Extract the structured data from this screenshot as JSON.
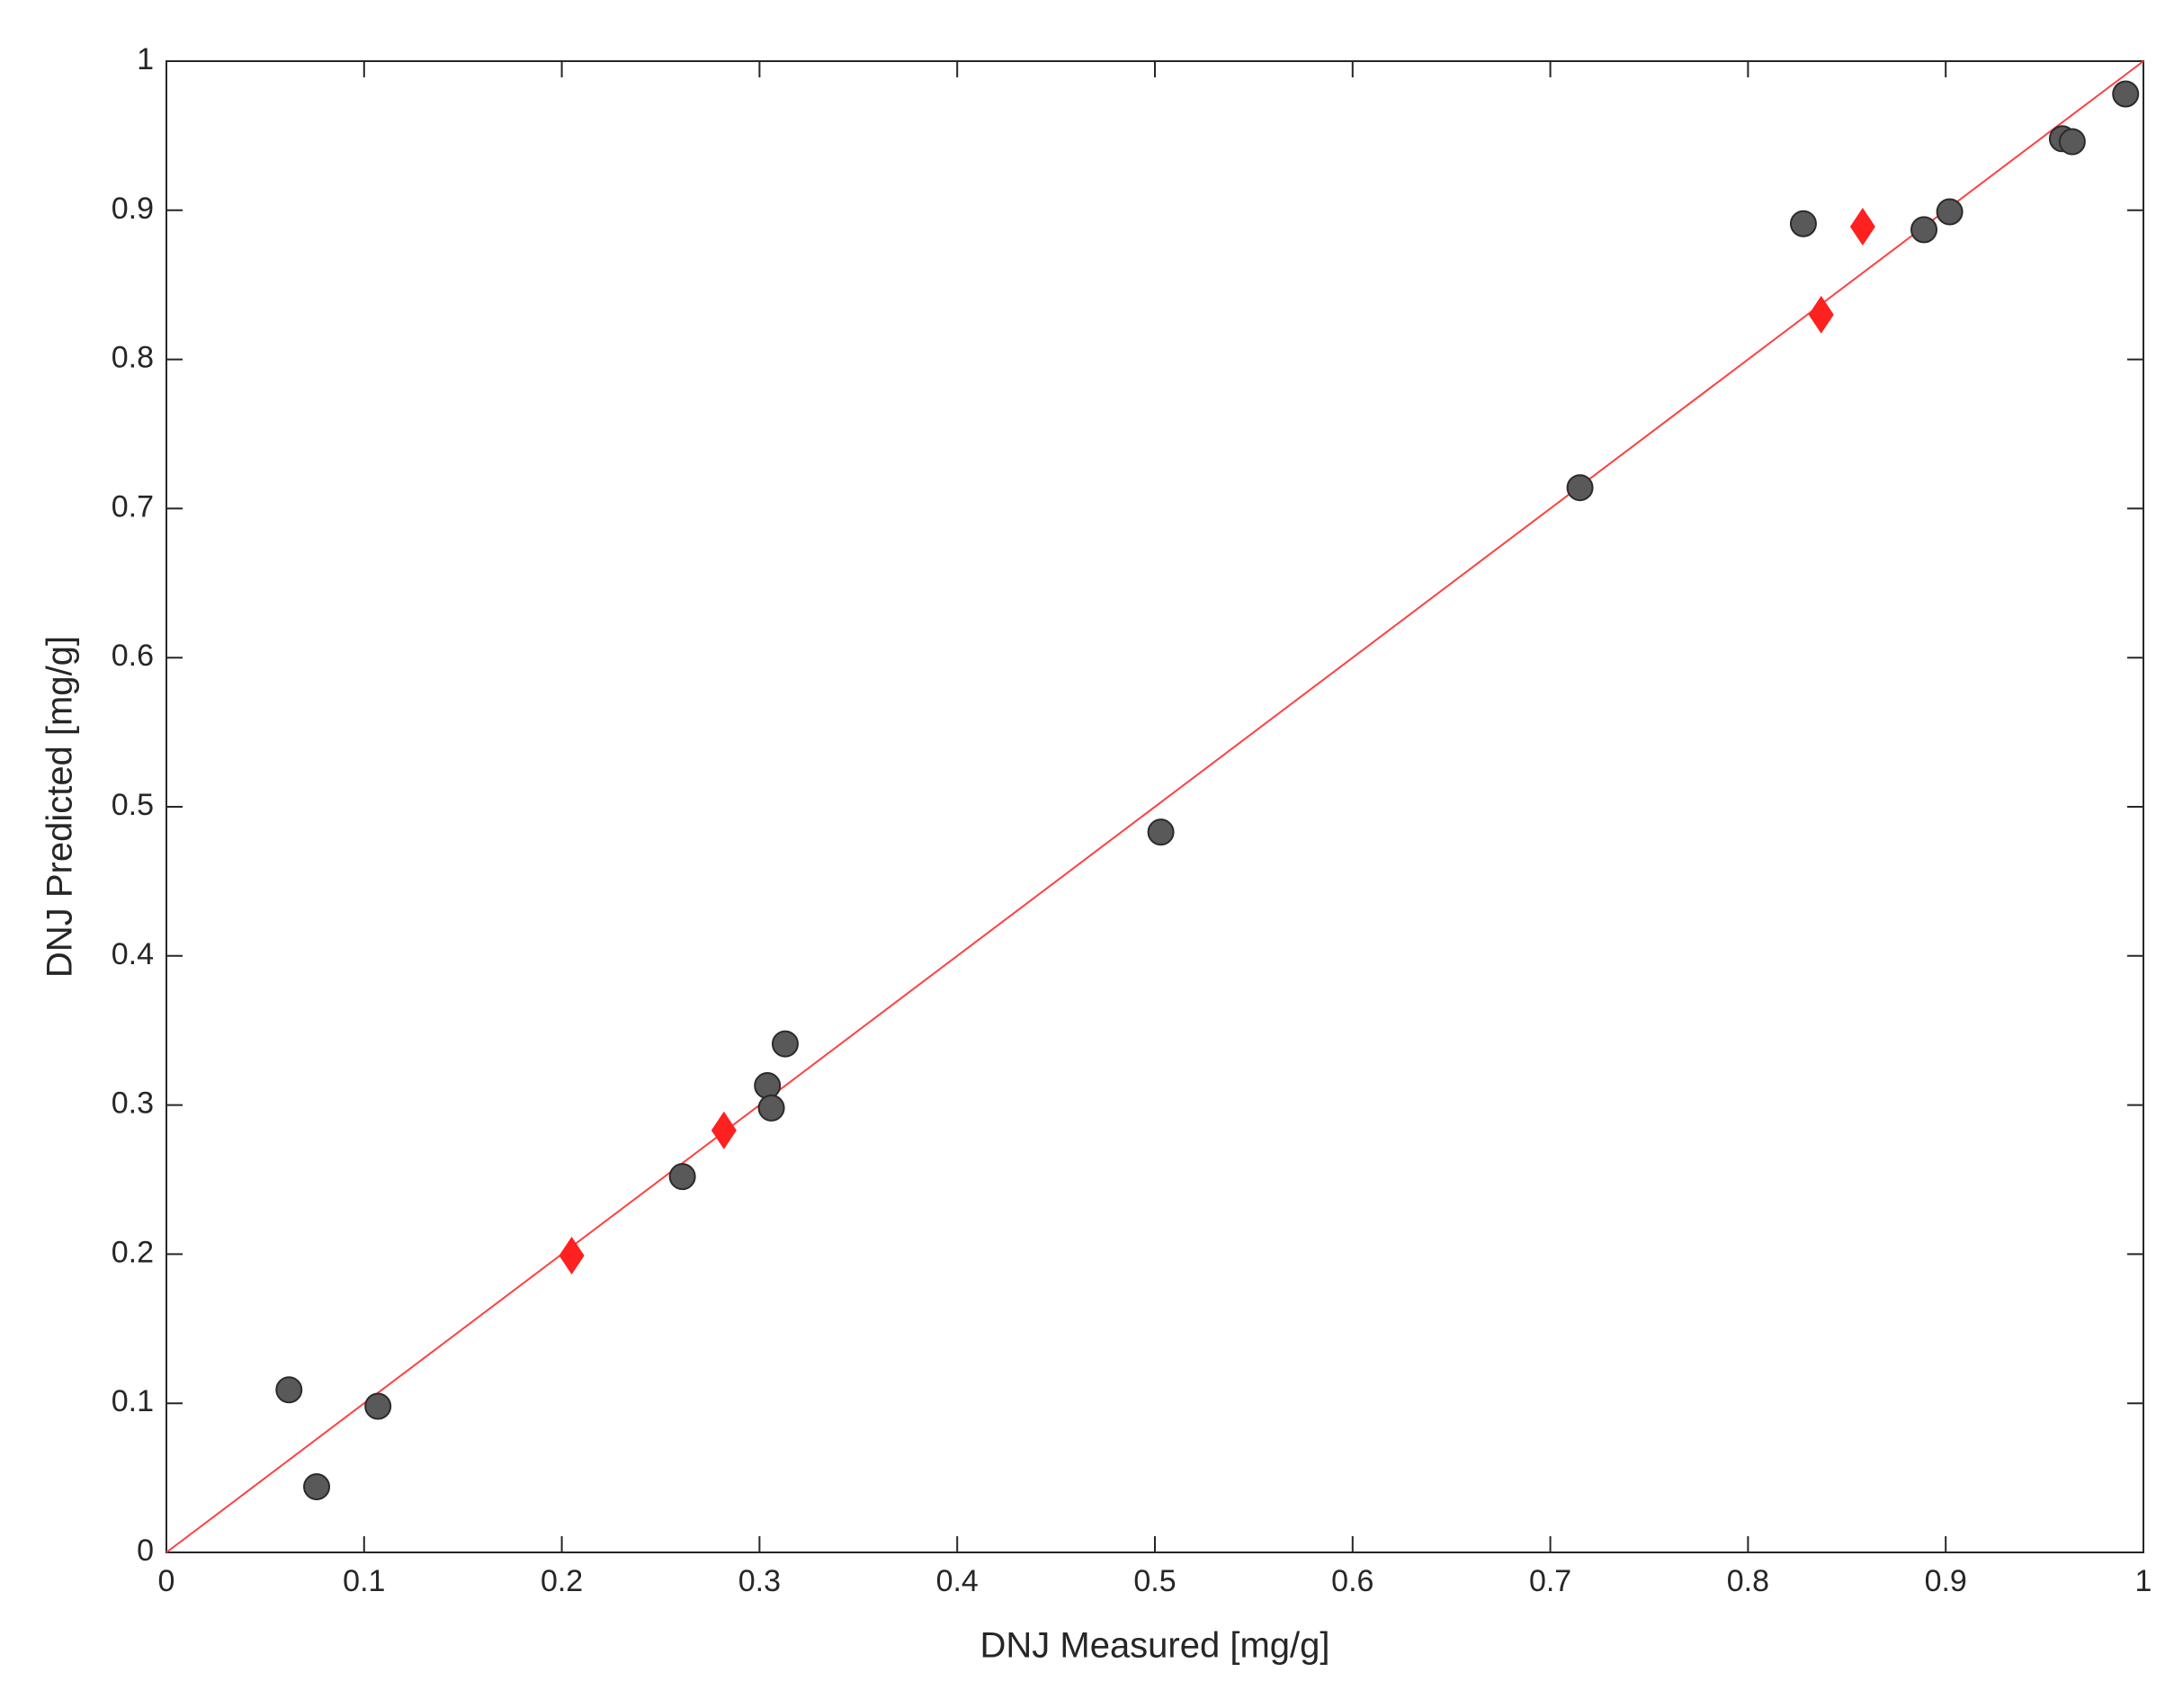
{
  "chart_data": {
    "type": "scatter",
    "x_label": "DNJ Measured [mg/g]",
    "y_label": "DNJ Predicted [mg/g]",
    "xlim": [
      0,
      1
    ],
    "ylim": [
      0,
      1
    ],
    "xticks": [
      0,
      0.1,
      0.2,
      0.3,
      0.4,
      0.5,
      0.6,
      0.7,
      0.8,
      0.9,
      1
    ],
    "yticks": [
      0,
      0.1,
      0.2,
      0.3,
      0.4,
      0.5,
      0.6,
      0.7,
      0.8,
      0.9,
      1
    ],
    "grid": false,
    "series": [
      {
        "marker": "circle",
        "color": "#595959",
        "x": [
          0.062,
          0.076,
          0.107,
          0.261,
          0.304,
          0.306,
          0.313,
          0.503,
          0.715,
          0.828,
          0.889,
          0.902,
          0.959,
          0.964,
          0.991
        ],
        "y": [
          0.109,
          0.044,
          0.098,
          0.252,
          0.313,
          0.298,
          0.341,
          0.483,
          0.714,
          0.891,
          0.887,
          0.899,
          0.948,
          0.946,
          0.978
        ]
      },
      {
        "marker": "diamond",
        "color": "#ff2020",
        "x": [
          0.205,
          0.282,
          0.837,
          0.858
        ],
        "y": [
          0.199,
          0.283,
          0.83,
          0.889
        ]
      }
    ],
    "fit_line": {
      "color": "#ff4040",
      "x": [
        0,
        1
      ],
      "y": [
        0,
        1
      ]
    }
  }
}
